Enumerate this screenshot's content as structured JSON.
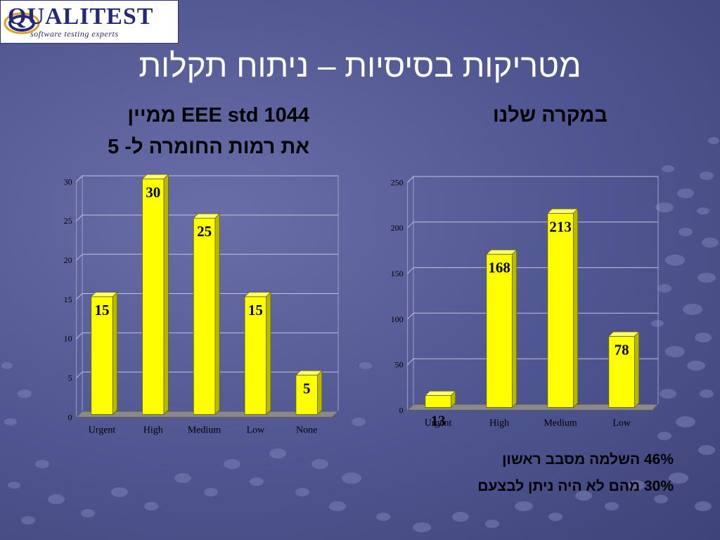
{
  "logo": {
    "name": "QUALITEST",
    "tagline": "software testing experts"
  },
  "slide_title": "מטריקות בסיסיות – ניתוח תקלות",
  "left_heading_line1": "EEE std 1044 ממיין",
  "left_heading_line2": "את רמות החומרה ל- 5",
  "right_heading": "במקרה שלנו",
  "notes": [
    "46% השלמה מסבב ראשון",
    "30% מהם לא היה ניתן לבצעם"
  ],
  "colors": {
    "bar": "#ffff00",
    "bar_shade": "#b8b800",
    "plot_bg": "#4f5590"
  },
  "chart_data": [
    {
      "type": "bar",
      "categories": [
        "Urgent",
        "High",
        "Medium",
        "Low",
        "None"
      ],
      "values": [
        15,
        30,
        25,
        15,
        5
      ],
      "data_labels": [
        "15",
        "30",
        "25",
        "15",
        "5"
      ],
      "ylim": [
        0,
        30
      ],
      "yticks": [
        0,
        5,
        10,
        15,
        20,
        25,
        30
      ],
      "grid": true,
      "legend": "none"
    },
    {
      "type": "bar",
      "categories": [
        "Urgent",
        "High",
        "Medium",
        "Low"
      ],
      "values": [
        13,
        168,
        213,
        78
      ],
      "data_labels": [
        "13",
        "168",
        "213",
        "78"
      ],
      "ylim": [
        0,
        250
      ],
      "yticks": [
        0,
        50,
        100,
        150,
        200,
        250
      ],
      "grid": true,
      "legend": "none"
    }
  ]
}
